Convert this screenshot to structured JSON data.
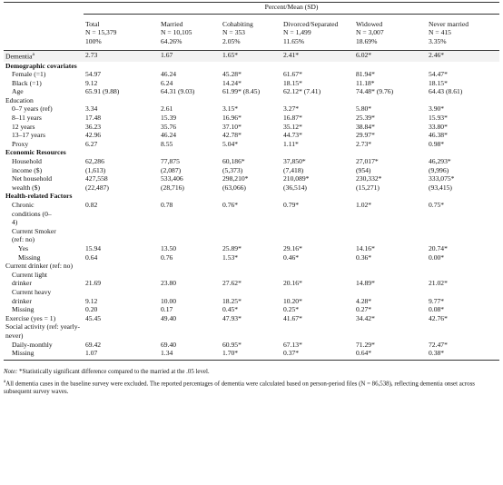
{
  "table": {
    "spanner": "Percent/Mean (SD)",
    "columns": [
      {
        "name": "Total",
        "n": "N = 15,379",
        "pct": "100%"
      },
      {
        "name": "Married",
        "n": "N = 10,105",
        "pct": "64.26%"
      },
      {
        "name": "Cohabiting",
        "n": "N = 353",
        "pct": "2.05%"
      },
      {
        "name": "Divorced/Separated",
        "n": "N = 1,499",
        "pct": "11.65%"
      },
      {
        "name": "Widowed",
        "n": "N = 3,007",
        "pct": "18.69%"
      },
      {
        "name": "Never married",
        "n": "N = 415",
        "pct": "3.35%"
      }
    ],
    "rows": [
      {
        "label": "Dementia",
        "marker": "a",
        "level": 0,
        "values": [
          "2.73",
          "1.67",
          "1.65*",
          "2.41*",
          "6.02*",
          "2.46*"
        ]
      },
      {
        "label": "Demographic covariates",
        "level": 0,
        "bold": true
      },
      {
        "label": "Female (=1)",
        "level": 1,
        "values": [
          "54.97",
          "46.24",
          "45.28*",
          "61.67*",
          "81.94*",
          "54.47*"
        ]
      },
      {
        "label": "Black (=1)",
        "level": 1,
        "values": [
          "9.12",
          "6.24",
          "14.24*",
          "18.15*",
          "11.18*",
          "18.15*"
        ]
      },
      {
        "label": "Age",
        "level": 1,
        "values": [
          "65.91 (9.88)",
          "64.31 (9.03)",
          "61.99* (8.45)",
          "62.12* (7.41)",
          "74.48* (9.76)",
          "64.43 (8.61)"
        ]
      },
      {
        "label": "Education",
        "level": 0
      },
      {
        "label": "0–7 years (ref)",
        "level": 1,
        "values": [
          "3.34",
          "2.61",
          "3.15*",
          "3.27*",
          "5.80*",
          "3.90*"
        ]
      },
      {
        "label": "8–11 years",
        "level": 1,
        "values": [
          "17.48",
          "15.39",
          "16.96*",
          "16.87*",
          "25.39*",
          "15.93*"
        ]
      },
      {
        "label": "12 years",
        "level": 1,
        "values": [
          "36.23",
          "35.76",
          "37.10*",
          "35.12*",
          "38.84*",
          "33.80*"
        ]
      },
      {
        "label": "13–17 years",
        "level": 1,
        "values": [
          "42.96",
          "46.24",
          "42.78*",
          "44.73*",
          "29.97*",
          "46.38*"
        ]
      },
      {
        "label": "Proxy",
        "level": 1,
        "values": [
          "6.27",
          "8.55",
          "5.04*",
          "1.11*",
          "2.73*",
          "0.98*"
        ]
      },
      {
        "label": "Economic Resources",
        "level": 0,
        "bold": true
      },
      {
        "label": "Household income ($)",
        "level": 1,
        "values": [
          "62,286",
          "77,875",
          "60,186*",
          "37,850*",
          "27,017*",
          "46,293*"
        ],
        "sd": [
          "(1,613)",
          "(2,087)",
          "(5,373)",
          "(7,418)",
          "(954)",
          "(9,996)"
        ]
      },
      {
        "label": "Net household wealth ($)",
        "level": 1,
        "values": [
          "427,558",
          "533,406",
          "298,210*",
          "210,089*",
          "230,332*",
          "333,075*"
        ],
        "sd": [
          "(22,487)",
          "(28,716)",
          "(63,066)",
          "(36,514)",
          "(15,271)",
          "(93,415)"
        ]
      },
      {
        "label": "Health-related Factors",
        "level": 0,
        "bold": true
      },
      {
        "label": "Chronic conditions (0–4)",
        "level": 1,
        "values": [
          "0.82",
          "0.78",
          "0.76*",
          "0.79*",
          "1.02*",
          "0.75*"
        ]
      },
      {
        "label": "Current Smoker (ref: no)",
        "level": 1
      },
      {
        "label": "Yes",
        "level": 2,
        "values": [
          "15.94",
          "13.50",
          "25.89*",
          "29.16*",
          "14.16*",
          "20.74*"
        ]
      },
      {
        "label": "Missing",
        "level": 2,
        "values": [
          "0.64",
          "0.76",
          "1.53*",
          "0.46*",
          "0.36*",
          "0.00*"
        ]
      },
      {
        "label": "Current drinker (ref: no)",
        "level": 0
      },
      {
        "label": "Current light drinker",
        "level": 1,
        "values": [
          "21.69",
          "23.80",
          "27.62*",
          "20.16*",
          "14.89*",
          "21.02*"
        ]
      },
      {
        "label": "Current heavy drinker",
        "level": 1,
        "values": [
          "9.12",
          "10.00",
          "18.25*",
          "10.20*",
          "4.28*",
          "9.77*"
        ]
      },
      {
        "label": "Missing",
        "level": 1,
        "values": [
          "0.20",
          "0.17",
          "0.45*",
          "0.25*",
          "0.27*",
          "0.08*"
        ]
      },
      {
        "label": "Exercise (yes = 1)",
        "level": 0,
        "values": [
          "45.45",
          "49.40",
          "47.93*",
          "41.67*",
          "34.42*",
          "42.76*"
        ]
      },
      {
        "label": "Social activity (ref: yearly-never)",
        "level": 0
      },
      {
        "label": "Daily-monthly",
        "level": 1,
        "values": [
          "69.42",
          "69.40",
          "60.95*",
          "67.13*",
          "71.29*",
          "72.47*"
        ]
      },
      {
        "label": "Missing",
        "level": 1,
        "values": [
          "1.07",
          "1.34",
          "1.70*",
          "0.37*",
          "0.64*",
          "0.38*"
        ]
      }
    ]
  },
  "notes": [
    {
      "prefix": "Note:",
      "text": "*Statistically significant difference compared to the married at the .05 level."
    },
    {
      "marker": "a",
      "text": "All dementia cases in the baseline survey were excluded. The reported percentages of dementia were calculated based on person-period files (N = 86,538), reflecting dementia onset across subsequent survey waves."
    }
  ]
}
